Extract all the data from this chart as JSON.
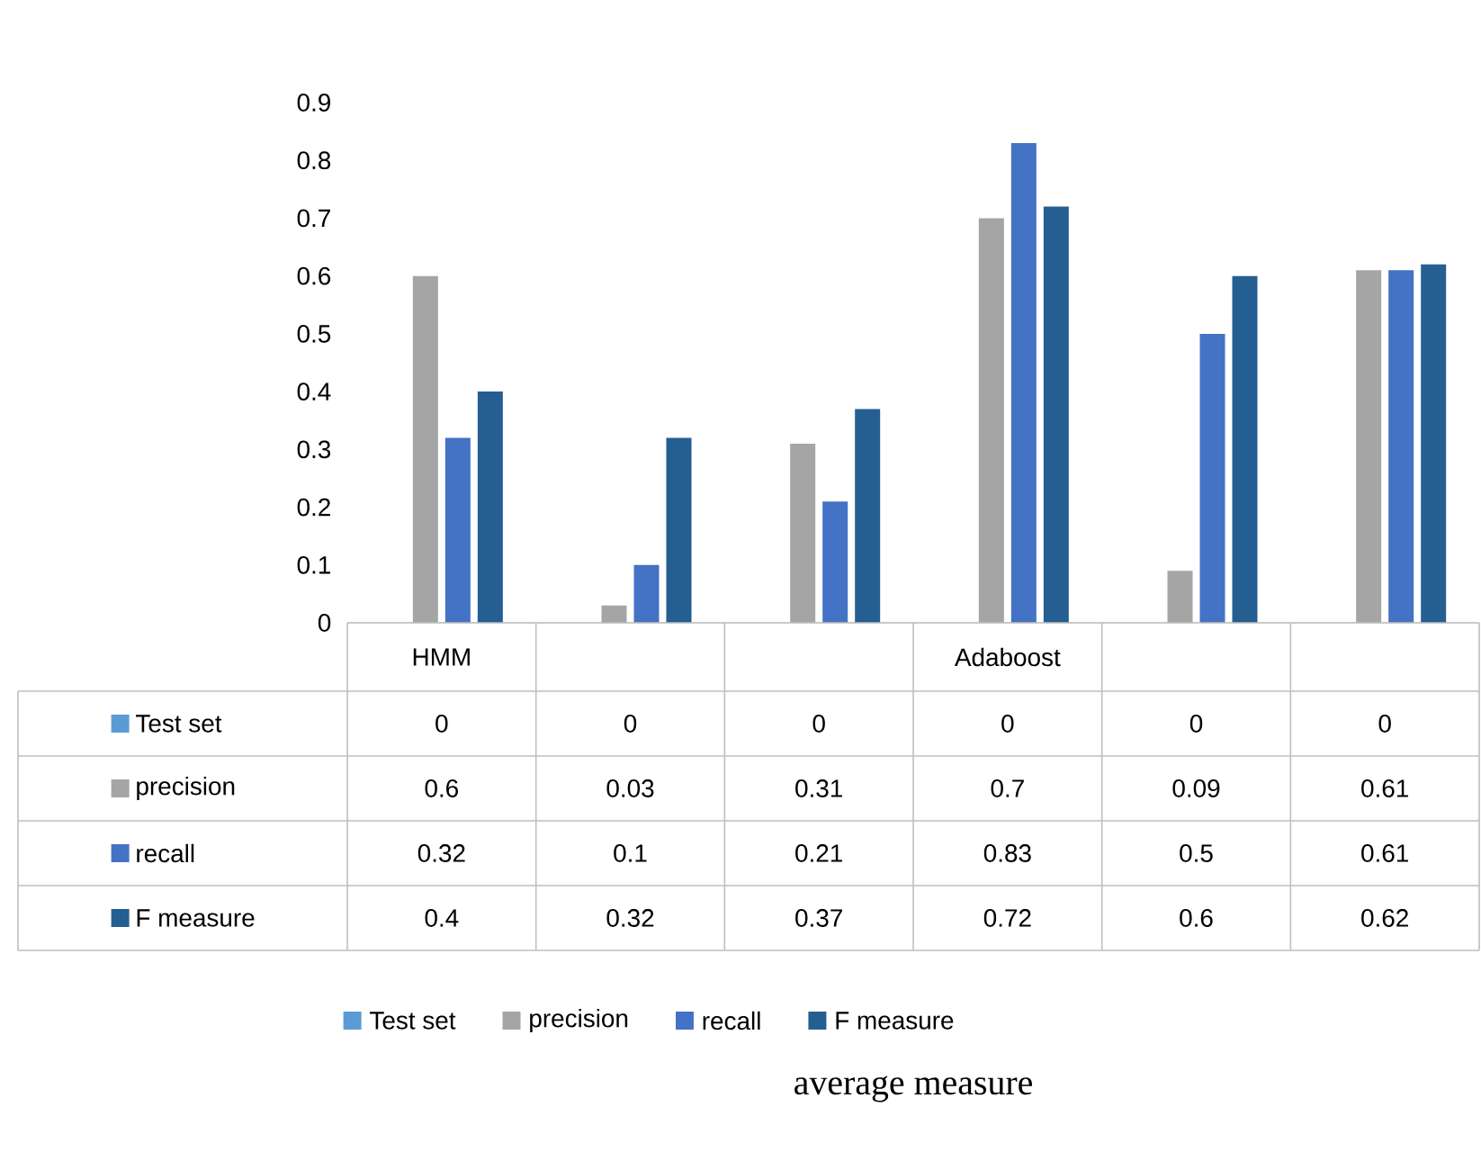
{
  "chart_data": {
    "type": "bar",
    "title": "average measure",
    "categories": [
      "HMM",
      null,
      null,
      "Adaboost",
      null,
      null
    ],
    "series": [
      {
        "name": "Test set",
        "color": "#5b9bd5",
        "values": [
          0,
          0,
          0,
          0,
          0,
          0
        ]
      },
      {
        "name": "precision",
        "color": "#a5a5a5",
        "values": [
          0.6,
          0.03,
          0.31,
          0.7,
          0.09,
          0.61
        ]
      },
      {
        "name": "recall",
        "color": "#4472c4",
        "values": [
          0.32,
          0.1,
          0.21,
          0.83,
          0.5,
          0.61
        ]
      },
      {
        "name": "F measure",
        "color": "#255e91",
        "values": [
          0.4,
          0.32,
          0.37,
          0.72,
          0.6,
          0.62
        ]
      }
    ],
    "ylim": [
      0,
      0.9
    ],
    "yticks": [
      0,
      0.1,
      0.2,
      0.3,
      0.4,
      0.5,
      0.6,
      0.7,
      0.8,
      0.9
    ],
    "data_labels": true,
    "legend": "bottom"
  }
}
